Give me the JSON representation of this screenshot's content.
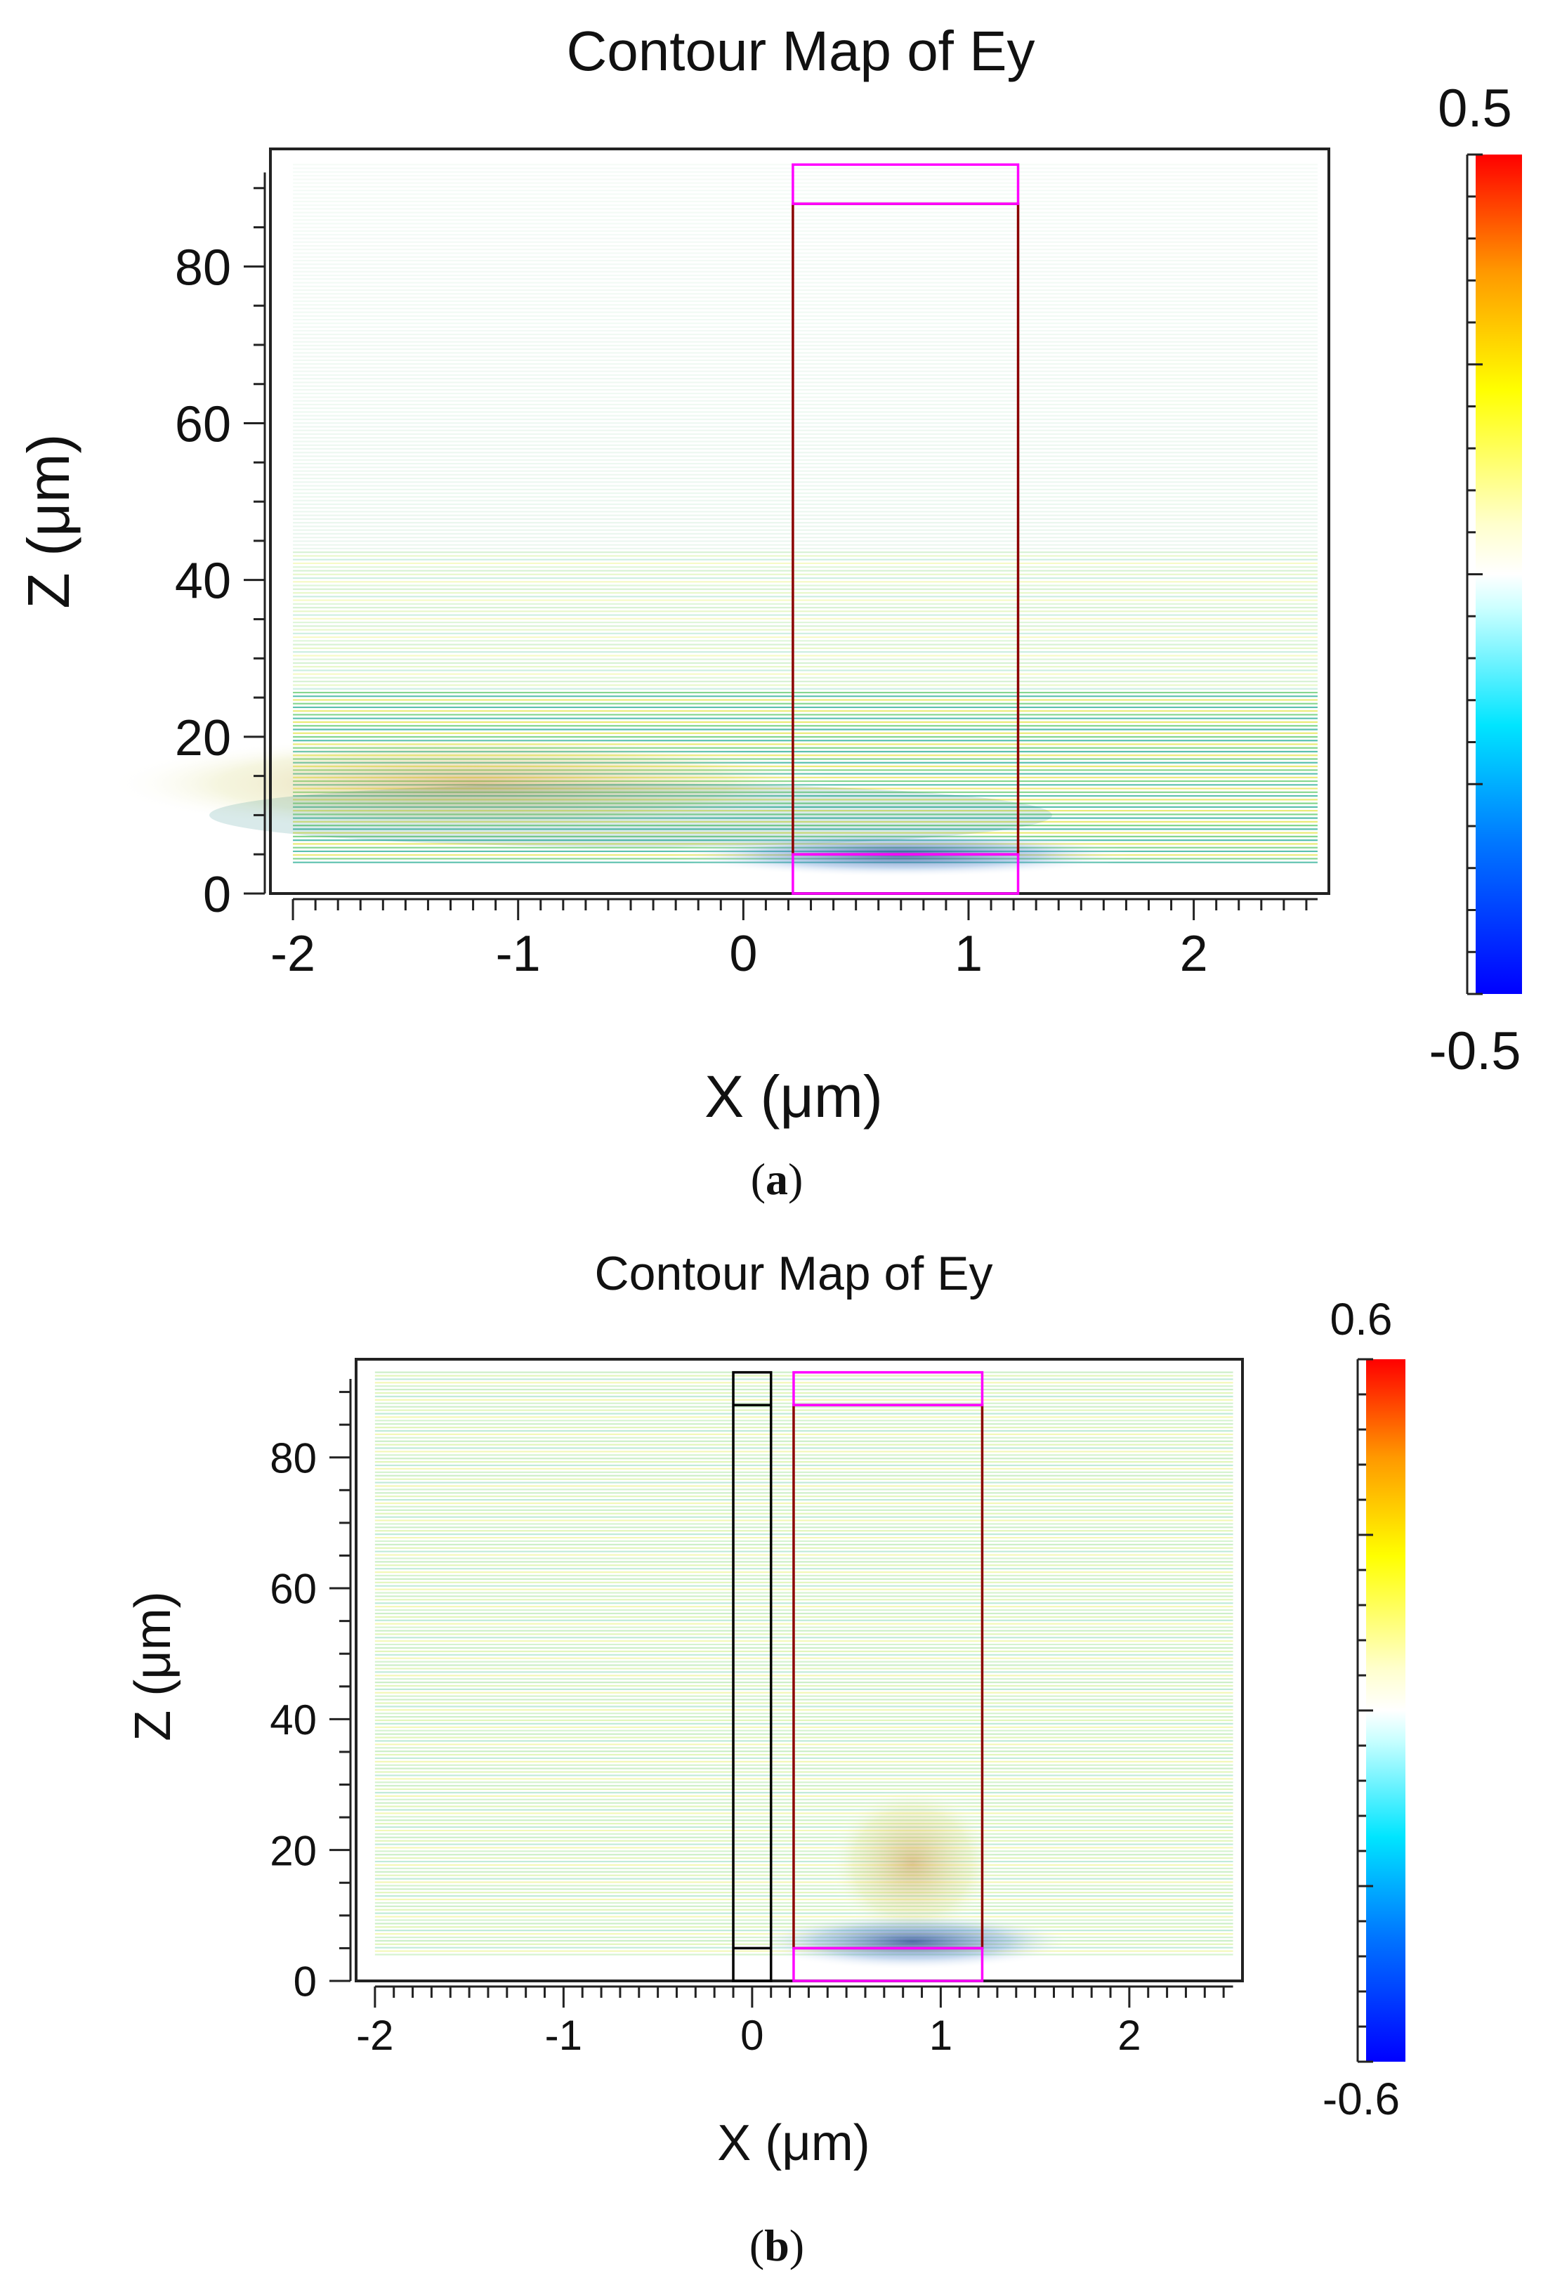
{
  "chart_data": [
    {
      "type": "heatmap",
      "panel_label": "a",
      "title": "Contour Map of Ey",
      "xlabel": "X (μm)",
      "ylabel": "Z (μm)",
      "xlim": [
        -2.1,
        2.6
      ],
      "ylim": [
        0,
        95
      ],
      "xticks": [
        -2,
        -1,
        0,
        1,
        2
      ],
      "yticks": [
        0,
        20,
        40,
        60,
        80
      ],
      "colorbar": {
        "min": -0.5,
        "max": 0.5,
        "min_label": "-0.5",
        "max_label": "0.5",
        "colormap": "jet"
      },
      "structures": [
        {
          "name": "cladding-box",
          "x": [
            0.22,
            1.22
          ],
          "z": [
            5,
            88
          ],
          "color": "#8B0000"
        },
        {
          "name": "top-layer",
          "x": [
            0.22,
            1.22
          ],
          "z": [
            88,
            93
          ],
          "color": "#ff00ff"
        },
        {
          "name": "bottom-layer",
          "x": [
            0.22,
            1.22
          ],
          "z": [
            0,
            5
          ],
          "color": "#ff00ff"
        }
      ],
      "field_notes": "Strong field band at z 5-25 um, left side x -2 to -1 um; minimum near x 0.6 um, z 3 um"
    },
    {
      "type": "heatmap",
      "panel_label": "b",
      "title": "Contour Map of Ey",
      "xlabel": "X (μm)",
      "ylabel": "Z (μm)",
      "xlim": [
        -2.1,
        2.6
      ],
      "ylim": [
        0,
        95
      ],
      "xticks": [
        -2,
        -1,
        0,
        1,
        2
      ],
      "yticks": [
        0,
        20,
        40,
        60,
        80
      ],
      "colorbar": {
        "min": -0.6,
        "max": 0.6,
        "min_label": "-0.6",
        "max_label": "0.6",
        "colormap": "jet"
      },
      "structures": [
        {
          "name": "left-waveguide",
          "x": [
            -0.1,
            0.1
          ],
          "z": [
            0,
            93
          ],
          "color": "#000000"
        },
        {
          "name": "cladding-box",
          "x": [
            0.22,
            1.22
          ],
          "z": [
            5,
            88
          ],
          "color": "#8B0000"
        },
        {
          "name": "top-layer",
          "x": [
            0.22,
            1.22
          ],
          "z": [
            88,
            93
          ],
          "color": "#ff00ff"
        },
        {
          "name": "bottom-layer",
          "x": [
            0.22,
            1.22
          ],
          "z": [
            0,
            5
          ],
          "color": "#ff00ff"
        }
      ],
      "field_notes": "Weak uniform field across domain; localized field near x 0.8 um, z 3-20 um"
    }
  ]
}
